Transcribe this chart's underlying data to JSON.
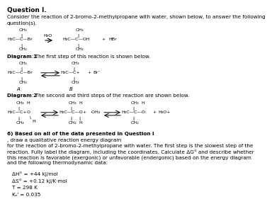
{
  "title": "Question I.",
  "intro_line1": "Consider the reaction of 2-bromo-2-methylpropane with water, shown below, to answer the following",
  "intro_line2": "question(s).",
  "diagram1_caption_bold": "Diagram 1",
  "diagram1_caption_rest": ": The first step of this reaction is shown below.",
  "diagram2_caption_bold": "Diagram 2",
  "diagram2_caption_rest": ": The second and third steps of the reaction are shown below.",
  "q6_bold": "6) Based on all of the data presented in Question I",
  "q6_rest": ", draw a qualitative reaction energy diagram",
  "q6_line2": "for the reaction of 2-bromo-2-methylpropane with water. The first step is the slowest step of the",
  "q6_line3": "reaction. Fully label the diagram, including the coordinates. Calculate ΔG° and describe whether",
  "q6_line4": "this reaction is favorable (exergonic) or unfavorable (endergonic) based on the energy diagram",
  "q6_line5": "and the following thermodynamic data:",
  "thermo1": "ΔH° = +44 kJ/mol",
  "thermo2": "ΔS° = +0.12 kJ/K·mol",
  "thermo3": "T = 298 K",
  "thermo4": "Kₑⁱ = 0.035",
  "bg_color": "#ffffff",
  "text_color": "#000000",
  "fs_title": 6.5,
  "fs_body": 5.2,
  "fs_chem": 4.6,
  "fs_label": 5.0
}
